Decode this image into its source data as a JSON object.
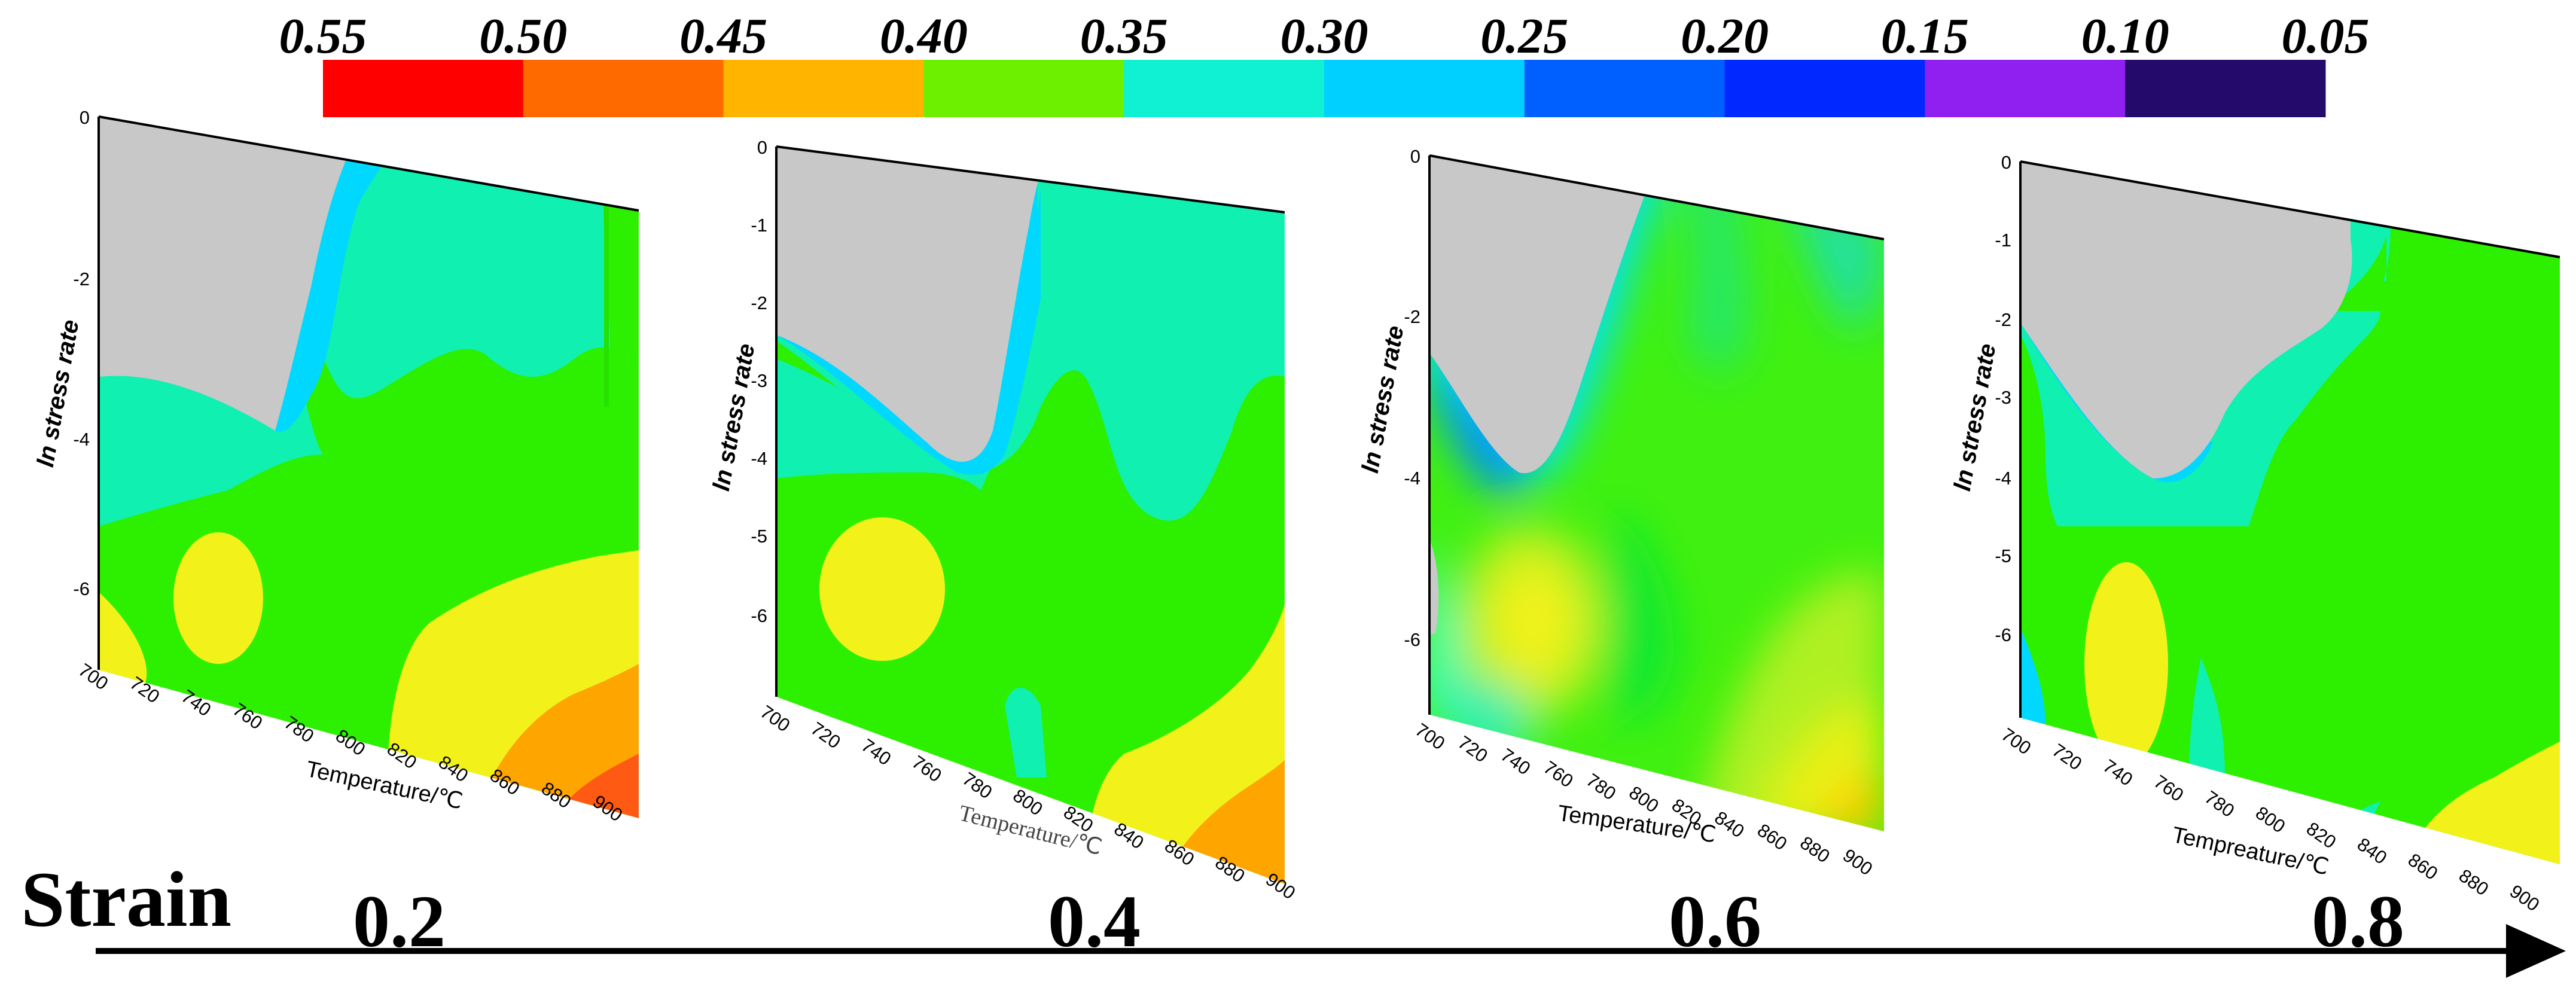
{
  "colorbar": {
    "labels": [
      "0.55",
      "0.50",
      "0.45",
      "0.40",
      "0.35",
      "0.30",
      "0.25",
      "0.20",
      "0.15",
      "0.10",
      "0.05"
    ],
    "colors": [
      "#ff0000",
      "#ff6a00",
      "#ffb400",
      "#6cf000",
      "#10f0d2",
      "#00d0ff",
      "#0060ff",
      "#0028ff",
      "#9020f0",
      "#240a6a"
    ]
  },
  "strain": {
    "label": "Strain",
    "values": [
      "0.2",
      "0.4",
      "0.6",
      "0.8"
    ]
  },
  "chart_data": [
    {
      "type": "heatmap",
      "strain": "0.2",
      "ylabel": "ln stress rate",
      "xlabel": "Temperature/℃",
      "yticks": [
        "0",
        "-2",
        "-4",
        "-6"
      ],
      "xticks": [
        "700",
        "720",
        "740",
        "760",
        "780",
        "800",
        "820",
        "840",
        "860",
        "880",
        "900"
      ],
      "xlim": [
        700,
        900
      ],
      "ylim": [
        -7,
        0
      ],
      "colormap_levels": [
        0.05,
        0.1,
        0.15,
        0.2,
        0.25,
        0.3,
        0.35,
        0.4,
        0.45,
        0.5,
        0.55
      ]
    },
    {
      "type": "heatmap",
      "strain": "0.4",
      "ylabel": "ln stress rate",
      "xlabel": "Temperature/℃",
      "yticks": [
        "0",
        "-1",
        "-2",
        "-3",
        "-4",
        "-5",
        "-6"
      ],
      "xticks": [
        "700",
        "720",
        "740",
        "760",
        "780",
        "800",
        "820",
        "840",
        "860",
        "880",
        "900"
      ],
      "xlim": [
        700,
        900
      ],
      "ylim": [
        -7,
        0
      ],
      "colormap_levels": [
        0.05,
        0.1,
        0.15,
        0.2,
        0.25,
        0.3,
        0.35,
        0.4,
        0.45,
        0.5,
        0.55
      ]
    },
    {
      "type": "heatmap",
      "strain": "0.6",
      "ylabel": "ln stress rate",
      "xlabel": "Temperature/℃",
      "yticks": [
        "0",
        "-2",
        "-4",
        "-6"
      ],
      "xticks": [
        "700",
        "720",
        "740",
        "760",
        "780",
        "800",
        "820",
        "840",
        "860",
        "880",
        "900"
      ],
      "xlim": [
        700,
        900
      ],
      "ylim": [
        -7,
        0
      ],
      "colormap_levels": [
        0.05,
        0.1,
        0.15,
        0.2,
        0.25,
        0.3,
        0.35,
        0.4,
        0.45,
        0.5,
        0.55
      ]
    },
    {
      "type": "heatmap",
      "strain": "0.8",
      "ylabel": "ln stress rate",
      "xlabel": "Tempreature/℃",
      "yticks": [
        "0",
        "-1",
        "-2",
        "-3",
        "-4",
        "-5",
        "-6"
      ],
      "xticks": [
        "700",
        "720",
        "740",
        "760",
        "780",
        "800",
        "820",
        "840",
        "860",
        "880",
        "900"
      ],
      "xlim": [
        700,
        900
      ],
      "ylim": [
        -7,
        0
      ],
      "colormap_levels": [
        0.05,
        0.1,
        0.15,
        0.2,
        0.25,
        0.3,
        0.35,
        0.4,
        0.45,
        0.5,
        0.55
      ]
    }
  ]
}
